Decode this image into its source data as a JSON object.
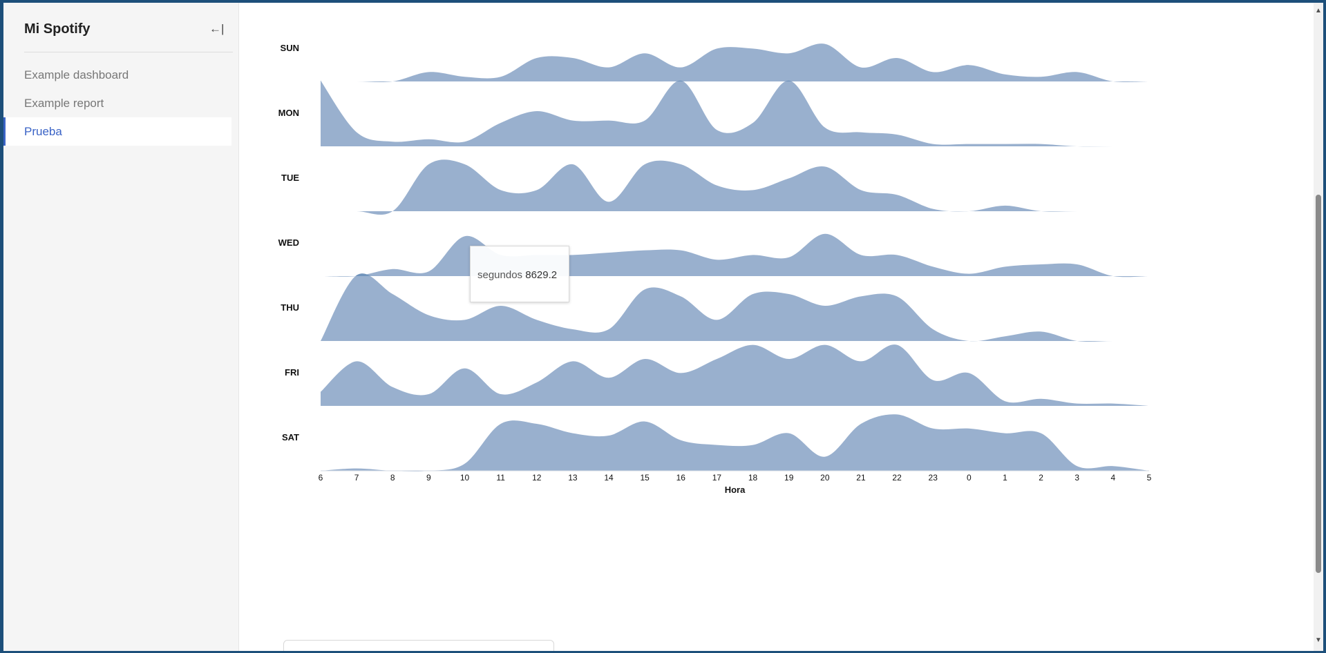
{
  "sidebar": {
    "title": "Mi Spotify",
    "collapse_icon": "collapse-left-icon",
    "collapse_label": "←|",
    "items": [
      {
        "label": "Example dashboard",
        "active": false
      },
      {
        "label": "Example report",
        "active": false
      },
      {
        "label": "Prueba",
        "active": true
      }
    ]
  },
  "tooltip": {
    "label": "segundos",
    "value": "8629.2"
  },
  "colors": {
    "ridge_fill": "#94accb",
    "ridge_overlap": "#6a8fb8",
    "accent": "#3a63c6"
  },
  "chart_data": {
    "type": "area",
    "subtype": "ridgeline",
    "xlabel": "Hora",
    "ylabel": "",
    "categories": [
      "6",
      "7",
      "8",
      "9",
      "10",
      "11",
      "12",
      "13",
      "14",
      "15",
      "16",
      "17",
      "18",
      "19",
      "20",
      "21",
      "22",
      "23",
      "0",
      "1",
      "2",
      "3",
      "4",
      "5"
    ],
    "grid": false,
    "legend": "none",
    "series": [
      {
        "name": "SUN",
        "values": [
          0,
          0,
          0,
          0.2,
          0.1,
          0.1,
          0.5,
          0.5,
          0.3,
          0.6,
          0.3,
          0.7,
          0.7,
          0.6,
          0.8,
          0.3,
          0.5,
          0.2,
          0.35,
          0.15,
          0.1,
          0.2,
          0,
          0
        ]
      },
      {
        "name": "MON",
        "values": [
          1.4,
          0.3,
          0.1,
          0.15,
          0.1,
          0.5,
          0.75,
          0.55,
          0.55,
          0.55,
          1.4,
          0.35,
          0.5,
          1.4,
          0.4,
          0.3,
          0.25,
          0.05,
          0.05,
          0.05,
          0.05,
          0,
          0,
          0
        ]
      },
      {
        "name": "TUE",
        "values": [
          0,
          0,
          0,
          1.0,
          1.0,
          0.45,
          0.45,
          1.0,
          0.2,
          1.0,
          1.0,
          0.55,
          0.45,
          0.7,
          0.95,
          0.45,
          0.35,
          0.05,
          0,
          0.12,
          0,
          0,
          0,
          0
        ]
      },
      {
        "name": "WED",
        "values": [
          0,
          0,
          0.15,
          0.1,
          0.85,
          0.45,
          0.45,
          0.45,
          0.5,
          0.55,
          0.55,
          0.35,
          0.45,
          0.4,
          0.9,
          0.45,
          0.45,
          0.2,
          0.05,
          0.2,
          0.25,
          0.25,
          0,
          0
        ]
      },
      {
        "name": "THU",
        "values": [
          0,
          1.4,
          1.0,
          0.55,
          0.45,
          0.75,
          0.45,
          0.25,
          0.25,
          1.1,
          0.95,
          0.45,
          1.0,
          1.0,
          0.75,
          0.95,
          0.95,
          0.25,
          0,
          0.1,
          0.2,
          0,
          0,
          0
        ]
      },
      {
        "name": "FRI",
        "values": [
          0.3,
          0.95,
          0.4,
          0.25,
          0.8,
          0.25,
          0.5,
          0.95,
          0.6,
          1.0,
          0.7,
          1.0,
          1.3,
          1.0,
          1.3,
          0.95,
          1.3,
          0.55,
          0.7,
          0.1,
          0.15,
          0.05,
          0.05,
          0
        ]
      },
      {
        "name": "SAT",
        "values": [
          0,
          0.05,
          0,
          0,
          0.15,
          1.0,
          1.0,
          0.8,
          0.75,
          1.05,
          0.65,
          0.55,
          0.55,
          0.8,
          0.3,
          1.0,
          1.2,
          0.9,
          0.9,
          0.8,
          0.8,
          0.1,
          0.1,
          0
        ]
      }
    ]
  },
  "scrollbar": {
    "up_icon": "▲",
    "down_icon": "▼"
  }
}
